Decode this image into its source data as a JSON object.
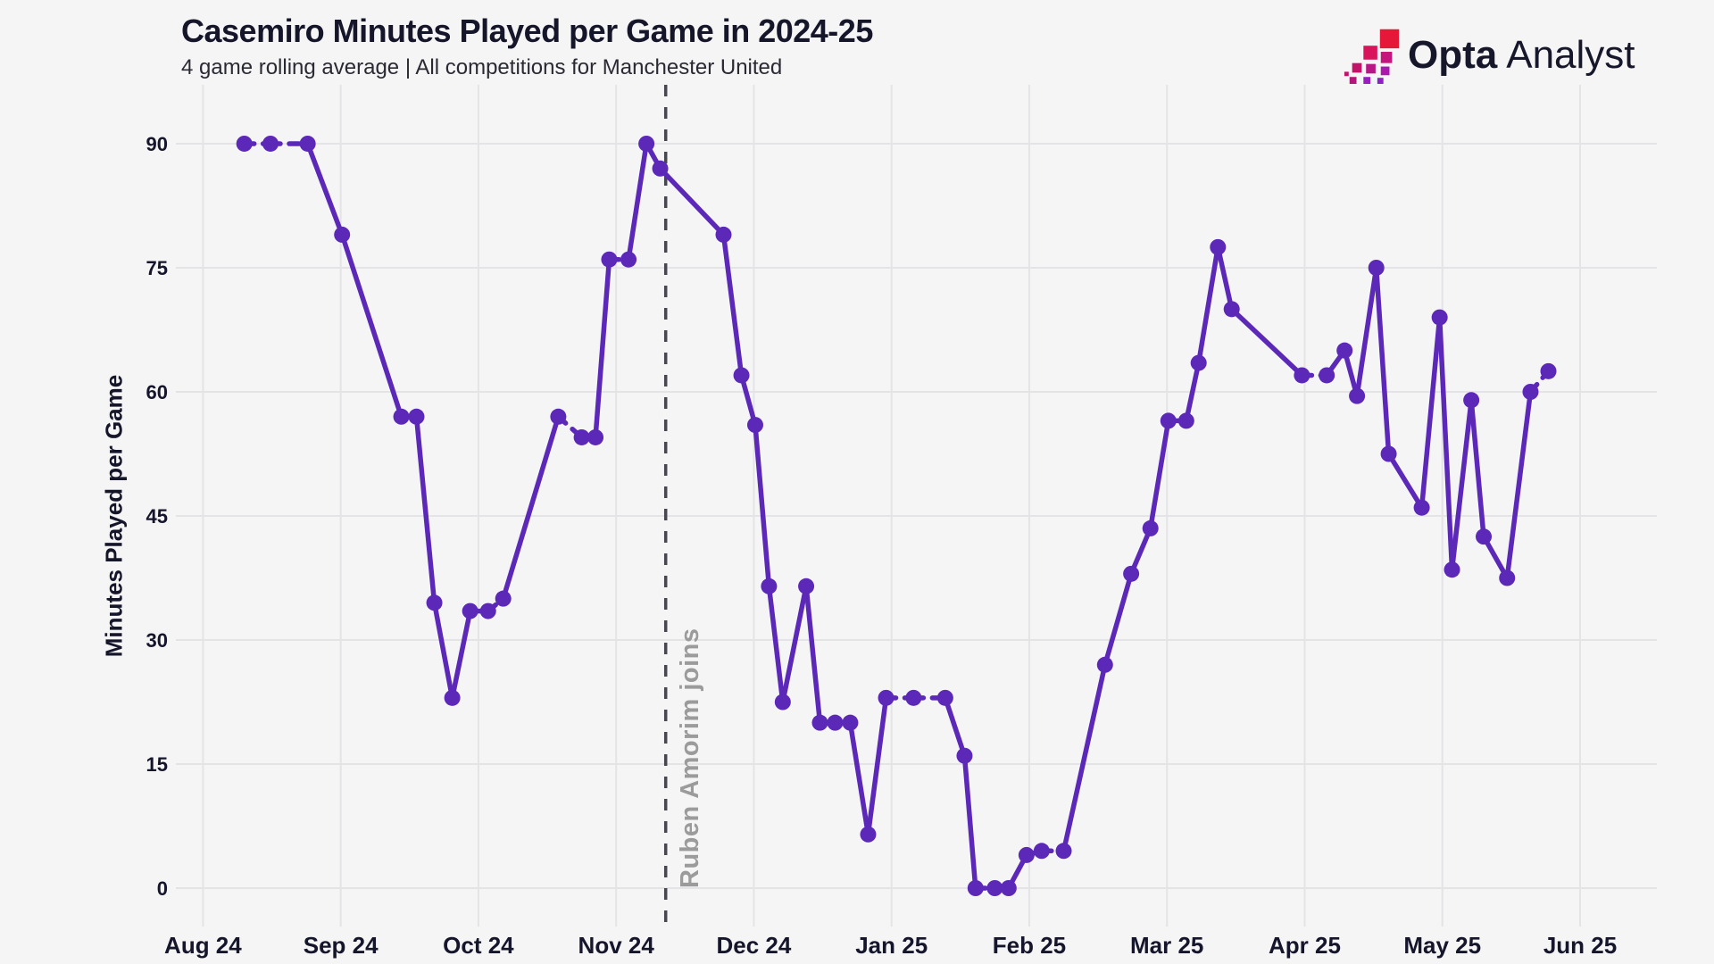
{
  "header": {
    "title": "Casemiro Minutes Played per Game in 2024-25",
    "subtitle": "4 game rolling average | All competitions for Manchester United"
  },
  "logo": {
    "brand_bold": "Opta",
    "brand_light": "Analyst",
    "icon": "opta-stairs-icon"
  },
  "colors": {
    "background": "#f5f5f6",
    "gridline": "#e4e4e6",
    "line": "#5b28b8",
    "text_dark": "#16162b",
    "annotation_line": "#47474f",
    "annotation_text": "#9b9b9b",
    "logo_red": "#e51839",
    "logo_purple": "#8e20c9"
  },
  "chart_data": {
    "type": "line",
    "title": "Casemiro Minutes Played per Game in 2024-25",
    "subtitle": "4 game rolling average | All competitions for Manchester United",
    "xlabel": "",
    "ylabel": "Minutes Played per Game",
    "x_unit": "months since Aug 2024 tick",
    "xtick_labels": [
      "Aug 24",
      "Sep 24",
      "Oct 24",
      "Nov 24",
      "Dec 24",
      "Jan 25",
      "Feb 25",
      "Mar 25",
      "Apr 25",
      "May 25",
      "Jun 25"
    ],
    "xtick_positions": [
      0,
      1,
      2,
      3,
      4,
      5,
      6,
      7,
      8,
      9,
      10
    ],
    "ylim": [
      0,
      90
    ],
    "yticks": [
      0,
      15,
      30,
      45,
      60,
      75,
      90
    ],
    "grid": true,
    "legend_position": "none",
    "marker": "circle",
    "annotation": {
      "label": "Ruben Amorim joins",
      "x": 3.36,
      "line_style": "dashed"
    },
    "series": [
      {
        "name": "Casemiro 4-game rolling average minutes",
        "points": [
          [
            0.3,
            90
          ],
          [
            0.49,
            90
          ],
          [
            0.76,
            90
          ],
          [
            1.01,
            79
          ],
          [
            1.44,
            57
          ],
          [
            1.55,
            57
          ],
          [
            1.68,
            34.5
          ],
          [
            1.81,
            23
          ],
          [
            1.94,
            33.5
          ],
          [
            2.07,
            33.5
          ],
          [
            2.18,
            35
          ],
          [
            2.58,
            57
          ],
          [
            2.75,
            54.5
          ],
          [
            2.85,
            54.5
          ],
          [
            2.95,
            76
          ],
          [
            3.09,
            76
          ],
          [
            3.22,
            90
          ],
          [
            3.32,
            87
          ],
          [
            3.78,
            79
          ],
          [
            3.91,
            62
          ],
          [
            4.01,
            56
          ],
          [
            4.11,
            36.5
          ],
          [
            4.21,
            22.5
          ],
          [
            4.38,
            36.5
          ],
          [
            4.48,
            20
          ],
          [
            4.59,
            20
          ],
          [
            4.7,
            20
          ],
          [
            4.83,
            6.5
          ],
          [
            4.96,
            23
          ],
          [
            5.16,
            23
          ],
          [
            5.39,
            23
          ],
          [
            5.53,
            16
          ],
          [
            5.61,
            0
          ],
          [
            5.75,
            0
          ],
          [
            5.85,
            0
          ],
          [
            5.98,
            4
          ],
          [
            6.09,
            4.5
          ],
          [
            6.25,
            4.5
          ],
          [
            6.55,
            27
          ],
          [
            6.74,
            38
          ],
          [
            6.88,
            43.5
          ],
          [
            7.01,
            56.5
          ],
          [
            7.14,
            56.5
          ],
          [
            7.23,
            63.5
          ],
          [
            7.37,
            77.5
          ],
          [
            7.47,
            70
          ],
          [
            7.98,
            62
          ],
          [
            8.16,
            62
          ],
          [
            8.29,
            65
          ],
          [
            8.38,
            59.5
          ],
          [
            8.52,
            75
          ],
          [
            8.61,
            52.5
          ],
          [
            8.85,
            46
          ],
          [
            8.98,
            69
          ],
          [
            9.07,
            38.5
          ],
          [
            9.21,
            59
          ],
          [
            9.3,
            42.5
          ],
          [
            9.47,
            37.5
          ],
          [
            9.64,
            60
          ],
          [
            9.77,
            62.5
          ]
        ]
      }
    ]
  }
}
